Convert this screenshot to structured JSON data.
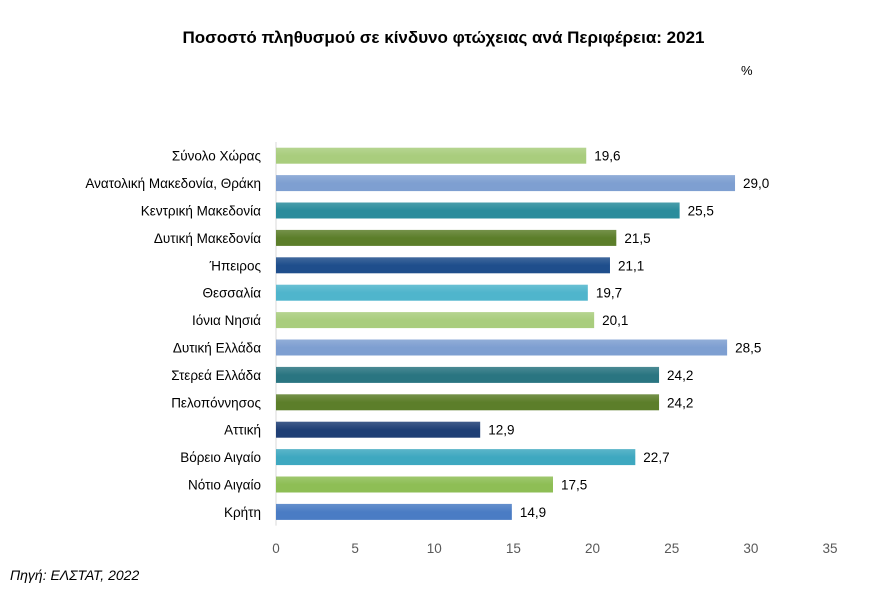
{
  "header": {
    "title": "Ποσοστό πληθυσμού σε κίνδυνο φτώχειας ανά Περιφέρεια: 2021",
    "unit": "%"
  },
  "footer": {
    "source": "Πηγή: ΕΛΣΤΑΤ, 2022"
  },
  "chart_data": {
    "type": "bar",
    "orientation": "horizontal",
    "title": "Ποσοστό πληθυσμού σε κίνδυνο φτώχειας ανά Περιφέρεια: 2021",
    "unit": "%",
    "categories": [
      "Σύνολο Χώρας",
      "Ανατολική Μακεδονία, Θράκη",
      "Κεντρική Μακεδονία",
      "Δυτική Μακεδονία",
      "Ήπειρος",
      "Θεσσαλία",
      "Ιόνια Νησιά",
      "Δυτική Ελλάδα",
      "Στερεά Ελλάδα",
      "Πελοπόννησος",
      "Αττική",
      "Βόρειο Αιγαίο",
      "Νότιο Αιγαίο",
      "Κρήτη"
    ],
    "values": [
      19.6,
      29.0,
      25.5,
      21.5,
      21.1,
      19.7,
      20.1,
      28.5,
      24.2,
      24.2,
      12.9,
      22.7,
      17.5,
      14.9
    ],
    "value_labels": [
      "19,6",
      "29,0",
      "25,5",
      "21,5",
      "21,1",
      "19,7",
      "20,1",
      "28,5",
      "24,2",
      "24,2",
      "12,9",
      "22,7",
      "17,5",
      "14,9"
    ],
    "colors": [
      "#A9CD7D",
      "#7E9FD1",
      "#2A8C9C",
      "#5C7E2A",
      "#1F4E8C",
      "#4FB5CC",
      "#A9CD7D",
      "#7E9FD1",
      "#2A7581",
      "#5C7E2A",
      "#1F3F75",
      "#3EA8C0",
      "#8EBE55",
      "#4A7CC4"
    ],
    "xlim": [
      0,
      35
    ],
    "xticks": [
      0,
      5,
      10,
      15,
      20,
      25,
      30,
      35
    ],
    "grid": false,
    "legend": "none"
  }
}
